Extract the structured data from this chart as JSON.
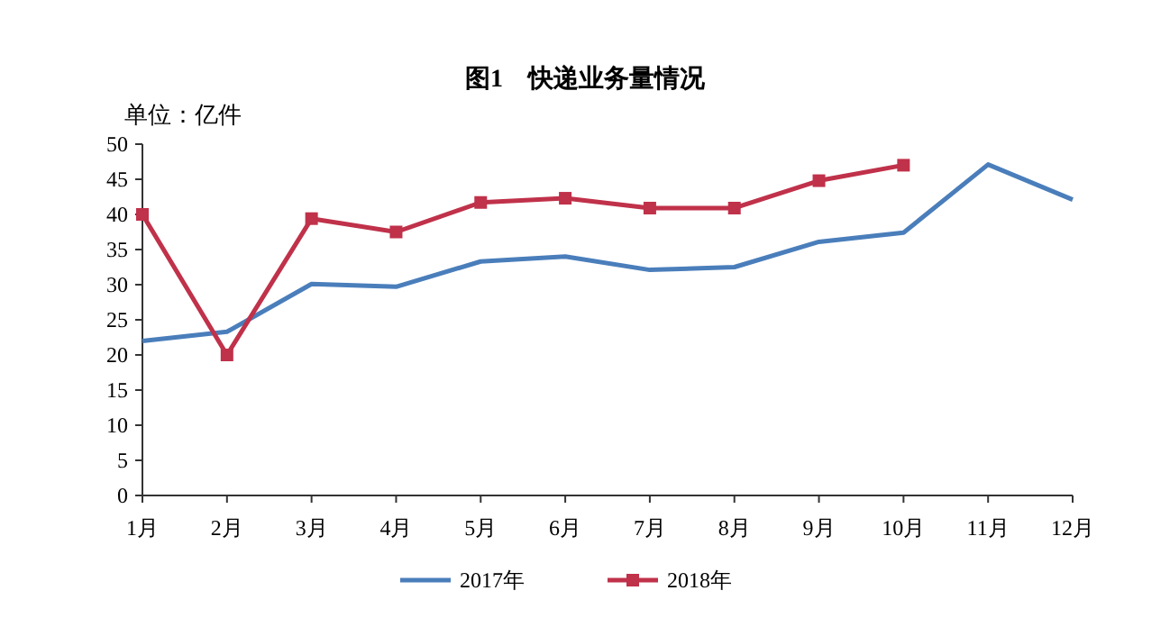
{
  "chart_data": {
    "type": "line",
    "title": "图1　快递业务量情况",
    "ylabel": "单位：亿件",
    "categories": [
      "1月",
      "2月",
      "3月",
      "4月",
      "5月",
      "6月",
      "7月",
      "8月",
      "9月",
      "10月",
      "11月",
      "12月"
    ],
    "series": [
      {
        "name": "2017年",
        "color": "#4a7ebb",
        "marker": "none",
        "values": [
          22,
          23.3,
          30.1,
          29.7,
          33.3,
          34,
          32.1,
          32.5,
          36.1,
          37.4,
          47.1,
          42.1
        ]
      },
      {
        "name": "2018年",
        "color": "#c0314a",
        "marker": "square",
        "values": [
          40,
          20,
          39.4,
          37.5,
          41.7,
          42.3,
          40.9,
          40.9,
          44.8,
          47,
          null,
          null
        ]
      }
    ],
    "ylim": [
      0,
      50
    ],
    "yticks": [
      0,
      5,
      10,
      15,
      20,
      25,
      30,
      35,
      40,
      45,
      50
    ],
    "grid": false,
    "legend": "bottom",
    "line_style": "solid"
  }
}
